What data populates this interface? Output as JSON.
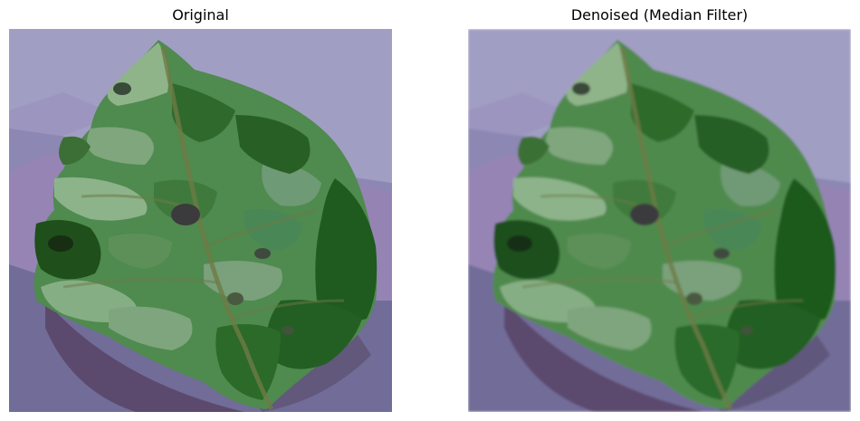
{
  "panels": [
    {
      "title": "Original",
      "filter": "none"
    },
    {
      "title": "Denoised (Median Filter)",
      "filter": "smooth"
    }
  ],
  "colors": {
    "background_top": "#a19ec3",
    "background_bottom": "#6f6a93",
    "background_purple": "#8a6fa0",
    "shadow": "#5a4868",
    "leaf_light": "#7fa67d",
    "leaf_mid": "#4f8a4e",
    "leaf_dark": "#1f5a1f",
    "leaf_deepest": "#173e14",
    "vein": "#6e7a45",
    "spot": "#3a3a3a"
  }
}
